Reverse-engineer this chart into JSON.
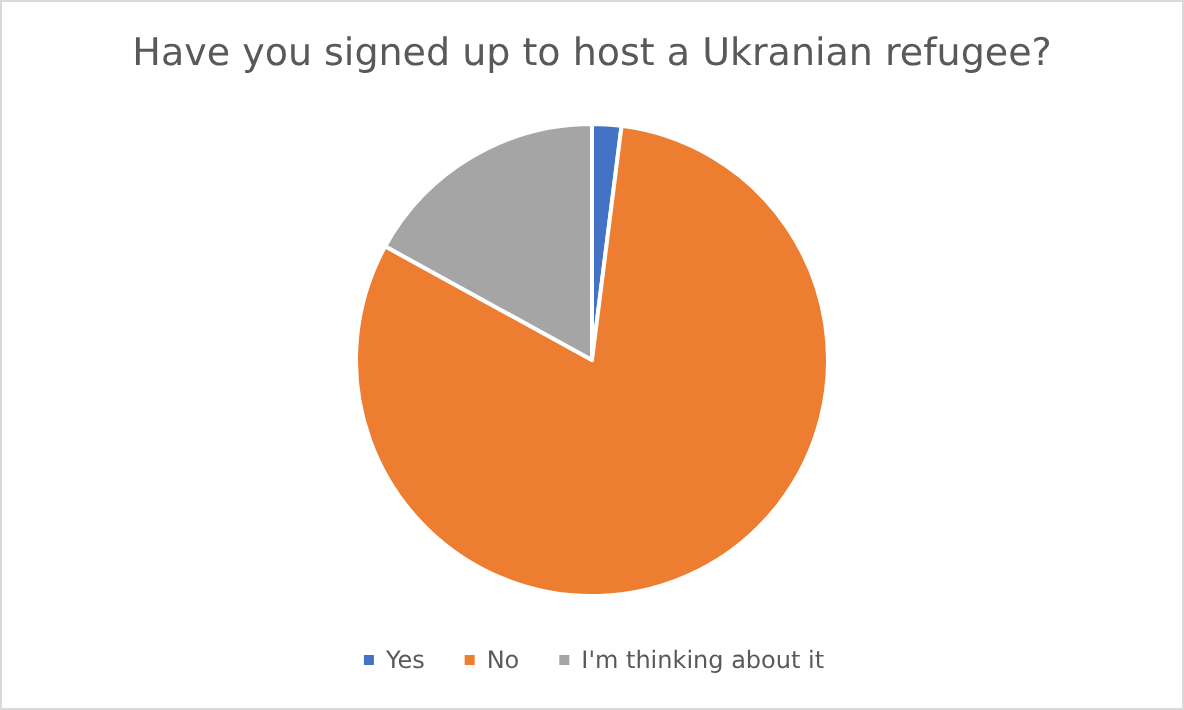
{
  "chart_data": {
    "type": "pie",
    "title": "Have you signed up to host a Ukranian refugee?",
    "categories": [
      "Yes",
      "No",
      "I'm thinking about it"
    ],
    "values": [
      2,
      81,
      17
    ],
    "colors": [
      "#4472c4",
      "#ed7d31",
      "#a5a5a5"
    ],
    "legend": "bottom"
  }
}
